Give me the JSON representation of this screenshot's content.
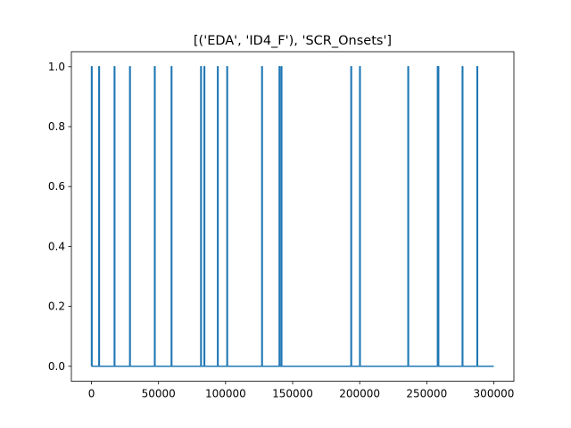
{
  "chart_data": {
    "type": "line",
    "title": "[('EDA', 'ID4_F'), 'SCR_Onsets']",
    "xlabel": "",
    "ylabel": "",
    "xlim": [
      -15000,
      315000
    ],
    "ylim": [
      -0.05,
      1.05
    ],
    "xticks": [
      0,
      50000,
      100000,
      150000,
      200000,
      250000,
      300000
    ],
    "xtick_labels": [
      "0",
      "50000",
      "100000",
      "150000",
      "200000",
      "250000",
      "300000"
    ],
    "yticks": [
      0.0,
      0.2,
      0.4,
      0.6,
      0.8,
      1.0
    ],
    "ytick_labels": [
      "0.0",
      "0.2",
      "0.4",
      "0.6",
      "0.8",
      "1.0"
    ],
    "grid": false,
    "line_color": "#1f77b4",
    "x_range": [
      0,
      300000
    ],
    "baseline_value": 0,
    "spike_value": 1,
    "spikes_x": [
      0,
      5500,
      17000,
      28500,
      47000,
      59500,
      81500,
      84000,
      94000,
      101000,
      127000,
      140000,
      141500,
      193500,
      200000,
      236000,
      258000,
      258500,
      276500,
      287500
    ]
  }
}
